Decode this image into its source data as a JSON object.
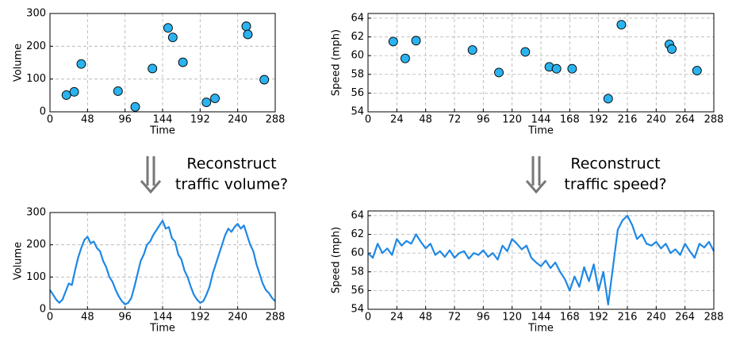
{
  "chart_data": [
    {
      "type": "scatter",
      "xlabel": "Time",
      "ylabel": "Volume",
      "color": "#2bb3f0",
      "grid": true,
      "x": [
        21,
        31,
        40,
        87,
        109,
        131,
        151,
        157,
        170,
        200,
        211,
        251,
        253,
        274
      ],
      "values": [
        51,
        61,
        146,
        63,
        15,
        132,
        256,
        227,
        151,
        29,
        41,
        261,
        236,
        98
      ],
      "xlim": [
        0,
        288
      ],
      "xticks": [
        0,
        48,
        96,
        144,
        192,
        240,
        288
      ],
      "ylim": [
        0,
        300
      ],
      "yticks": [
        0,
        100,
        200,
        300
      ]
    },
    {
      "type": "scatter",
      "xlabel": "Time",
      "ylabel": "Speed (mph)",
      "color": "#2bb3f0",
      "grid": true,
      "x": [
        21,
        31,
        40,
        87,
        109,
        131,
        151,
        157,
        170,
        200,
        211,
        251,
        253,
        274
      ],
      "values": [
        61.5,
        59.7,
        61.6,
        60.6,
        58.2,
        60.4,
        58.8,
        58.6,
        58.6,
        55.4,
        63.3,
        61.2,
        60.7,
        58.4
      ],
      "xlim": [
        0,
        288
      ],
      "xticks": [
        0,
        24,
        48,
        72,
        96,
        120,
        144,
        168,
        192,
        216,
        240,
        264,
        288
      ],
      "ylim": [
        54,
        64.5
      ],
      "yticks": [
        54,
        56,
        58,
        60,
        62,
        64
      ]
    },
    {
      "type": "line",
      "xlabel": "Time",
      "ylabel": "Volume",
      "color": "#1e88e5",
      "grid": true,
      "x": [
        0,
        4,
        8,
        12,
        16,
        20,
        24,
        28,
        32,
        36,
        40,
        44,
        48,
        52,
        56,
        60,
        64,
        68,
        72,
        76,
        80,
        84,
        88,
        92,
        96,
        100,
        104,
        108,
        112,
        116,
        120,
        124,
        128,
        132,
        136,
        140,
        144,
        148,
        152,
        156,
        160,
        164,
        168,
        172,
        176,
        180,
        184,
        188,
        192,
        196,
        200,
        204,
        208,
        212,
        216,
        220,
        224,
        228,
        232,
        236,
        240,
        244,
        248,
        252,
        256,
        260,
        264,
        268,
        272,
        276,
        280,
        284,
        288
      ],
      "values": [
        60,
        45,
        30,
        20,
        30,
        55,
        80,
        75,
        120,
        160,
        190,
        215,
        225,
        205,
        210,
        190,
        180,
        150,
        130,
        100,
        85,
        60,
        40,
        25,
        15,
        20,
        35,
        70,
        110,
        150,
        170,
        200,
        210,
        230,
        245,
        260,
        275,
        250,
        255,
        220,
        210,
        170,
        155,
        120,
        100,
        70,
        45,
        30,
        20,
        25,
        45,
        70,
        110,
        140,
        170,
        200,
        230,
        250,
        240,
        255,
        265,
        250,
        260,
        230,
        200,
        180,
        140,
        110,
        80,
        60,
        50,
        35,
        25
      ],
      "xlim": [
        0,
        288
      ],
      "xticks": [
        0,
        48,
        96,
        144,
        192,
        240,
        288
      ],
      "ylim": [
        0,
        300
      ],
      "yticks": [
        0,
        100,
        200,
        300
      ]
    },
    {
      "type": "line",
      "xlabel": "Time",
      "ylabel": "Speed (mph)",
      "color": "#1e88e5",
      "grid": true,
      "x": [
        0,
        4,
        8,
        12,
        16,
        20,
        24,
        28,
        32,
        36,
        40,
        44,
        48,
        52,
        56,
        60,
        64,
        68,
        72,
        76,
        80,
        84,
        88,
        92,
        96,
        100,
        104,
        108,
        112,
        116,
        120,
        124,
        128,
        132,
        136,
        140,
        144,
        148,
        152,
        156,
        160,
        164,
        168,
        172,
        176,
        180,
        184,
        188,
        192,
        196,
        200,
        204,
        208,
        212,
        216,
        220,
        224,
        228,
        232,
        236,
        240,
        244,
        248,
        252,
        256,
        260,
        264,
        268,
        272,
        276,
        280,
        284,
        288
      ],
      "values": [
        60,
        59.5,
        61,
        60,
        60.5,
        59.8,
        61.5,
        60.8,
        61.3,
        61,
        62,
        61.2,
        60.5,
        61,
        59.8,
        60.2,
        59.6,
        60.3,
        59.5,
        60,
        60.2,
        59.4,
        60,
        59.8,
        60.3,
        59.6,
        60,
        59.3,
        60.8,
        60.2,
        61.5,
        61,
        60.4,
        60.8,
        59.5,
        59,
        58.6,
        59.2,
        58.4,
        59,
        58,
        57.2,
        56,
        57.5,
        56.4,
        58.5,
        57,
        58.8,
        56,
        58,
        54.5,
        58.5,
        62.5,
        63.5,
        64,
        63,
        61.5,
        62,
        61,
        60.8,
        61.2,
        60.5,
        61,
        60,
        60.4,
        59.8,
        61,
        60.2,
        59.5,
        61,
        60.6,
        61.2,
        60.2
      ],
      "xlim": [
        0,
        288
      ],
      "xticks": [
        0,
        24,
        48,
        72,
        96,
        120,
        144,
        168,
        192,
        216,
        240,
        264,
        288
      ],
      "ylim": [
        54,
        64.5
      ],
      "yticks": [
        54,
        56,
        58,
        60,
        62,
        64
      ]
    }
  ],
  "captions": [
    {
      "lines": [
        "Reconstruct",
        "traffic volume?"
      ]
    },
    {
      "lines": [
        "Reconstruct",
        "traffic speed?"
      ]
    }
  ]
}
